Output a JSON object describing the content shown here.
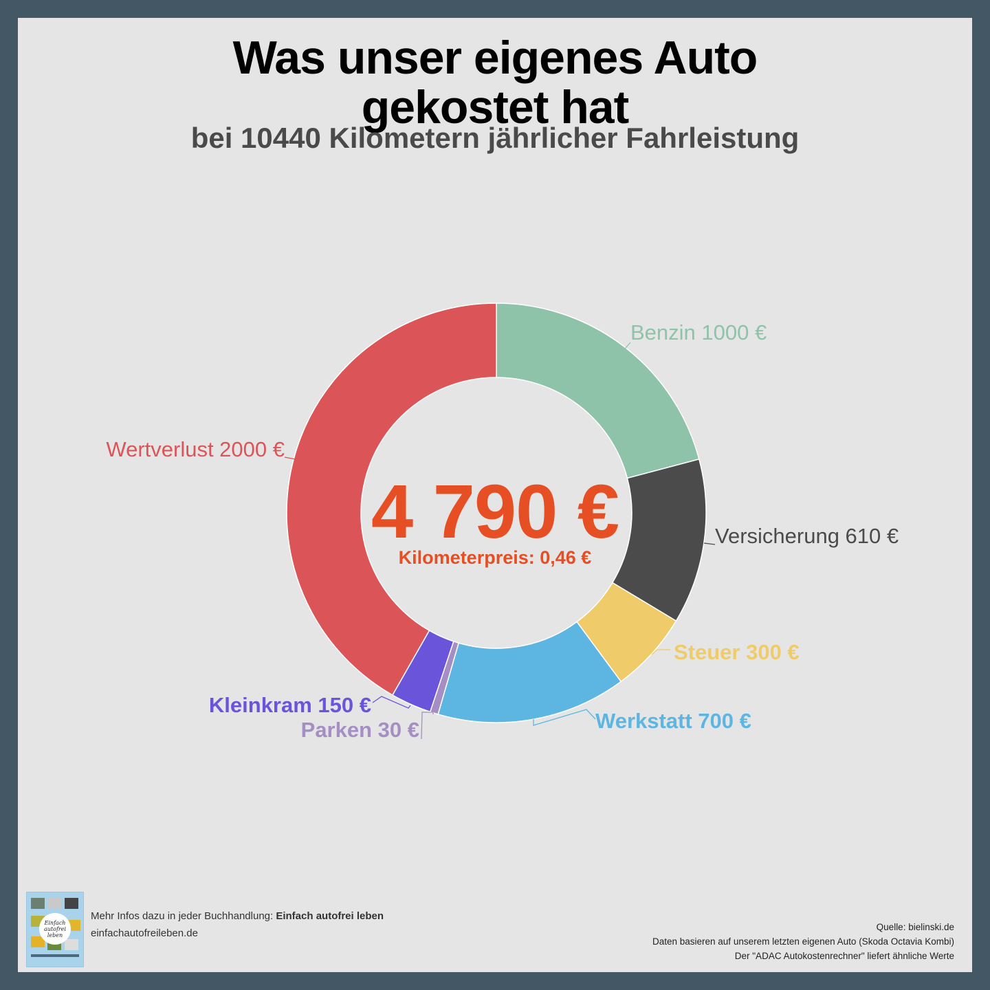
{
  "header": {
    "title_line1": "Was unser eigenes Auto",
    "title_line2": "gekostet hat",
    "subtitle": "bei 10440 Kilometern jährlicher Fahrleistung"
  },
  "center": {
    "total": "4 790 €",
    "km_price": "Kilometerpreis: 0,46 €"
  },
  "labels": {
    "benzin": "Benzin 1000 €",
    "versicherung": "Versicherung 610 €",
    "steuer": "Steuer 300 €",
    "werkstatt": "Werkstatt 700 €",
    "parken": "Parken 30 €",
    "kleinkram": "Kleinkram 150 €",
    "wertverlust": "Wertverlust 2000 €"
  },
  "footer": {
    "left_prefix": "Mehr Infos dazu in jeder Buchhandlung: ",
    "left_book": "Einfach autofrei leben",
    "left_url": "einfachautofreileben.de",
    "book_cover_text": "Einfach autofrei leben",
    "right_line1": "Quelle: bielinski.de",
    "right_line2": "Daten basieren auf unserem letzten eigenen Auto (Skoda Octavia Kombi)",
    "right_line3": "Der \"ADAC Autokostenrechner\" liefert ähnliche Werte"
  },
  "colors": {
    "benzin": "#8fc3a9",
    "versicherung": "#4b4b4b",
    "steuer": "#f0cb69",
    "werkstatt": "#5db5e2",
    "parken": "#a48ec4",
    "kleinkram": "#6a54d9",
    "wertverlust": "#db5558",
    "total": "#e64e24",
    "frame": "#445764",
    "background": "#e5e5e5"
  },
  "chart_data": {
    "type": "pie",
    "variant": "donut",
    "title": "Was unser eigenes Auto gekostet hat",
    "subtitle": "bei 10440 Kilometern jährlicher Fahrleistung",
    "categories": [
      "Benzin",
      "Versicherung",
      "Steuer",
      "Werkstatt",
      "Parken",
      "Kleinkram",
      "Wertverlust"
    ],
    "values": [
      1000,
      610,
      300,
      700,
      30,
      150,
      2000
    ],
    "unit": "€",
    "total": 4790,
    "center_label": "4 790 €",
    "annotation": "Kilometerpreis: 0,46 €",
    "annual_km": 10440,
    "start_angle": "12 o'clock",
    "direction": "clockwise",
    "legend": "none (direct labels)"
  }
}
